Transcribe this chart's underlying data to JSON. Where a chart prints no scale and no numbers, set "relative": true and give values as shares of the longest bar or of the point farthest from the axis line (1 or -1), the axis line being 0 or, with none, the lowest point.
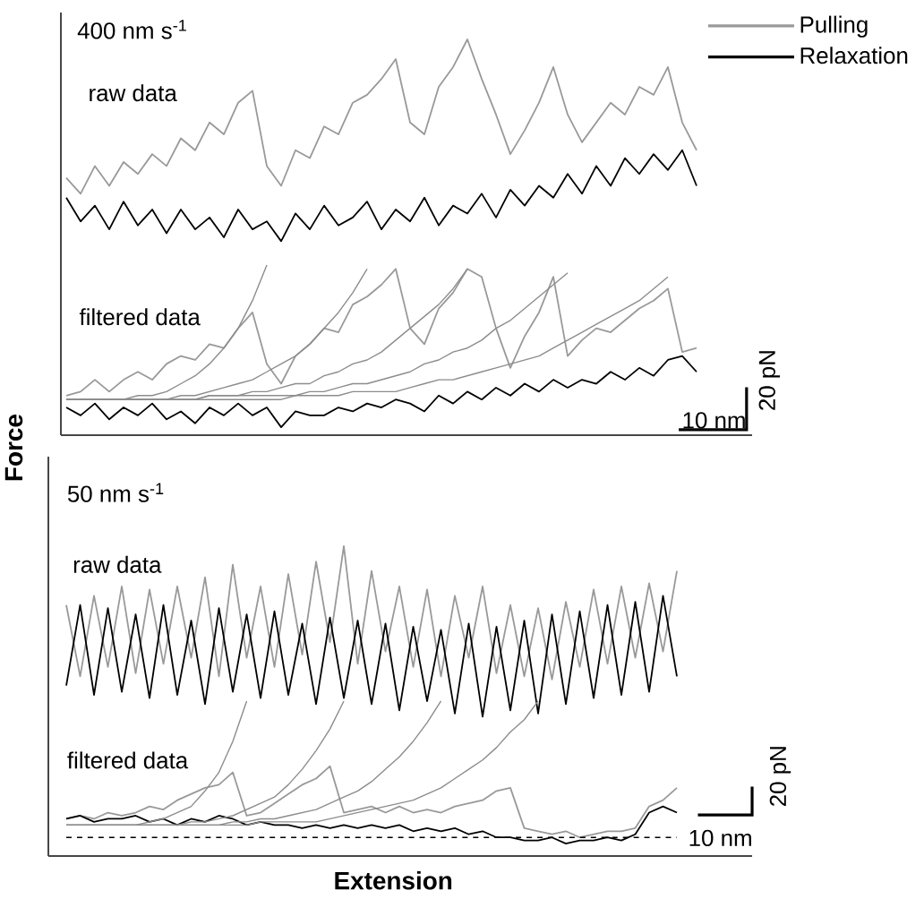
{
  "chart_data": [
    {
      "type": "line",
      "relative": true,
      "legend": "top right",
      "ylabel": "Force",
      "annotations": [
        "400 nm s$^{-1}$",
        "raw data",
        "filtered data",
        "20 pN",
        "10 nm"
      ],
      "categories": [
        null,
        null,
        null,
        null,
        null,
        null,
        null,
        null,
        null,
        null,
        null,
        null,
        null,
        null,
        null,
        null,
        null,
        null,
        null,
        null,
        null,
        null,
        null,
        null,
        null,
        null,
        null,
        null,
        null,
        null,
        null,
        null,
        null,
        null,
        null,
        null,
        null,
        null,
        null,
        null,
        null,
        null,
        null,
        null,
        null
      ],
      "series": [
        {
          "name": "Pulling",
          "color": "#999999",
          "values": [
            0.65,
            0.61,
            0.68,
            0.63,
            0.69,
            0.66,
            0.71,
            0.68,
            0.75,
            0.72,
            0.79,
            0.76,
            0.84,
            0.87,
            0.68,
            0.63,
            0.72,
            0.7,
            0.78,
            0.76,
            0.84,
            0.86,
            0.9,
            0.95,
            0.79,
            0.76,
            0.88,
            0.93,
            1,
            0.9,
            0.81,
            0.71,
            0.77,
            0.84,
            0.93,
            0.81,
            0.74,
            0.79,
            0.84,
            0.81,
            0.88,
            0.86,
            0.93,
            0.79,
            0.72
          ]
        },
        {
          "name": "Relaxation",
          "color": "#000000",
          "values": [
            0.6,
            0.54,
            0.58,
            0.52,
            0.59,
            0.53,
            0.57,
            0.51,
            0.57,
            0.52,
            0.55,
            0.5,
            0.57,
            0.52,
            0.54,
            0.49,
            0.56,
            0.52,
            0.58,
            0.53,
            0.55,
            0.59,
            0.52,
            0.57,
            0.54,
            0.6,
            0.53,
            0.58,
            0.56,
            0.61,
            0.55,
            0.62,
            0.58,
            0.63,
            0.6,
            0.66,
            0.61,
            0.68,
            0.63,
            0.7,
            0.66,
            0.71,
            0.67,
            0.72,
            0.63
          ]
        },
        {
          "color": "#999999",
          "values": [
            0.1,
            0.11,
            0.14,
            0.11,
            0.14,
            0.16,
            0.14,
            0.18,
            0.2,
            0.19,
            0.23,
            0.22,
            0.27,
            0.31,
            0.18,
            0.13,
            0.2,
            0.23,
            0.27,
            0.26,
            0.33,
            0.35,
            0.38,
            0.42,
            0.27,
            0.23,
            0.32,
            0.36,
            0.42,
            0.4,
            0.27,
            0.17,
            0.25,
            0.31,
            0.4,
            0.2,
            0.24,
            0.27,
            0.26,
            0.29,
            0.32,
            0.34,
            0.37,
            0.21,
            0.22
          ]
        },
        {
          "color": "#000000",
          "values": [
            0.07,
            0.05,
            0.08,
            0.04,
            0.07,
            0.05,
            0.08,
            0.04,
            0.06,
            0.03,
            0.07,
            0.05,
            0.08,
            0.05,
            0.07,
            0.02,
            0.06,
            0.05,
            0.05,
            0.07,
            0.06,
            0.08,
            0.07,
            0.09,
            0.08,
            0.06,
            0.1,
            0.08,
            0.11,
            0.09,
            0.12,
            0.1,
            0.13,
            0.11,
            0.14,
            0.12,
            0.14,
            0.13,
            0.16,
            0.14,
            0.17,
            0.15,
            0.19,
            0.2,
            0.16
          ]
        },
        {
          "color": "#8c8c8c",
          "values": [
            0.09,
            0.09,
            0.09,
            0.09,
            0.09,
            0.1,
            0.1,
            0.11,
            0.13,
            0.15,
            0.18,
            0.22,
            0.27,
            0.34,
            0.43,
            null,
            null,
            null,
            null,
            null,
            null,
            null,
            null,
            null,
            null,
            null,
            null,
            null,
            null,
            null,
            null,
            null,
            null,
            null,
            null,
            null,
            null,
            null,
            null,
            null,
            null,
            null,
            null,
            null,
            null
          ]
        },
        {
          "color": "#8c8c8c",
          "values": [
            0.09,
            0.09,
            0.09,
            0.09,
            0.09,
            0.09,
            0.09,
            0.09,
            0.1,
            0.1,
            0.11,
            0.12,
            0.13,
            0.14,
            0.16,
            0.18,
            0.2,
            0.23,
            0.27,
            0.31,
            0.36,
            0.42,
            null,
            null,
            null,
            null,
            null,
            null,
            null,
            null,
            null,
            null,
            null,
            null,
            null,
            null,
            null,
            null,
            null,
            null,
            null,
            null,
            null,
            null,
            null
          ]
        },
        {
          "color": "#8c8c8c",
          "values": [
            0.09,
            0.09,
            0.09,
            0.09,
            0.09,
            0.09,
            0.09,
            0.09,
            0.09,
            0.09,
            0.1,
            0.1,
            0.1,
            0.11,
            0.11,
            0.12,
            0.13,
            0.13,
            0.15,
            0.16,
            0.18,
            0.19,
            0.21,
            0.24,
            0.27,
            0.3,
            0.33,
            0.37,
            0.42,
            null,
            null,
            null,
            null,
            null,
            null,
            null,
            null,
            null,
            null,
            null,
            null,
            null,
            null,
            null,
            null
          ]
        },
        {
          "color": "#8c8c8c",
          "values": [
            0.09,
            0.09,
            0.09,
            0.09,
            0.09,
            0.09,
            0.09,
            0.09,
            0.09,
            0.09,
            0.1,
            0.1,
            0.1,
            0.1,
            0.1,
            0.1,
            0.1,
            0.11,
            0.11,
            0.12,
            0.13,
            0.13,
            0.14,
            0.15,
            0.16,
            0.18,
            0.19,
            0.21,
            0.22,
            0.24,
            0.27,
            0.29,
            0.32,
            0.35,
            0.38,
            0.41,
            null,
            null,
            null,
            null,
            null,
            null,
            null,
            null,
            null
          ]
        },
        {
          "color": "#8c8c8c",
          "values": [
            0.09,
            0.09,
            0.09,
            0.09,
            0.09,
            0.09,
            0.09,
            0.09,
            0.09,
            0.09,
            0.09,
            0.09,
            0.09,
            0.09,
            0.09,
            0.09,
            0.1,
            0.1,
            0.1,
            0.1,
            0.11,
            0.11,
            0.11,
            0.11,
            0.12,
            0.13,
            0.14,
            0.14,
            0.15,
            0.16,
            0.17,
            0.18,
            0.19,
            0.2,
            0.22,
            0.24,
            0.26,
            0.28,
            0.3,
            0.32,
            0.34,
            0.37,
            0.4,
            null,
            null
          ]
        }
      ]
    },
    {
      "type": "line",
      "relative": true,
      "xlabel": "Extension",
      "annotations": [
        "50 nm s$^{-1}$",
        "raw data",
        "filtered data",
        "20 pN",
        "10 nm"
      ],
      "categories": [
        null,
        null,
        null,
        null,
        null,
        null,
        null,
        null,
        null,
        null,
        null,
        null,
        null,
        null,
        null,
        null,
        null,
        null,
        null,
        null,
        null,
        null,
        null,
        null,
        null,
        null,
        null,
        null,
        null,
        null,
        null,
        null,
        null,
        null,
        null,
        null,
        null,
        null,
        null,
        null,
        null,
        null,
        null,
        null,
        null
      ],
      "ref_lines": [
        {
          "axis": "y",
          "value": 0.06,
          "color": "#000000",
          "line_style": "dashed"
        }
      ],
      "series": [
        {
          "color": "#999999",
          "values": [
            0.81,
            0.58,
            0.84,
            0.61,
            0.87,
            0.59,
            0.86,
            0.62,
            0.87,
            0.64,
            0.9,
            0.58,
            0.94,
            0.64,
            0.87,
            0.61,
            0.91,
            0.65,
            0.95,
            0.69,
            1,
            0.62,
            0.92,
            0.66,
            0.87,
            0.61,
            0.86,
            0.58,
            0.84,
            0.64,
            0.87,
            0.59,
            0.81,
            0.58,
            0.8,
            0.57,
            0.82,
            0.61,
            0.86,
            0.62,
            0.87,
            0.64,
            0.88,
            0.66,
            0.92
          ]
        },
        {
          "color": "#000000",
          "values": [
            0.55,
            0.81,
            0.52,
            0.8,
            0.53,
            0.78,
            0.51,
            0.81,
            0.52,
            0.76,
            0.49,
            0.8,
            0.53,
            0.78,
            0.51,
            0.79,
            0.52,
            0.75,
            0.49,
            0.77,
            0.51,
            0.76,
            0.49,
            0.75,
            0.47,
            0.74,
            0.5,
            0.73,
            0.46,
            0.75,
            0.45,
            0.74,
            0.47,
            0.76,
            0.46,
            0.78,
            0.49,
            0.79,
            0.51,
            0.81,
            0.52,
            0.82,
            0.53,
            0.84,
            0.58
          ]
        },
        {
          "color": "#999999",
          "values": [
            0.12,
            0.13,
            0.12,
            0.14,
            0.13,
            0.14,
            0.16,
            0.15,
            0.18,
            0.2,
            0.22,
            0.23,
            0.27,
            0.13,
            0.14,
            0.17,
            0.2,
            0.23,
            0.25,
            0.29,
            0.14,
            0.15,
            0.16,
            0.14,
            0.16,
            0.14,
            0.15,
            0.14,
            0.16,
            0.17,
            0.18,
            0.21,
            0.22,
            0.09,
            0.08,
            0.07,
            0.08,
            0.06,
            0.07,
            0.08,
            0.08,
            0.09,
            0.16,
            0.18,
            0.22
          ]
        },
        {
          "color": "#000000",
          "values": [
            0.12,
            0.13,
            0.11,
            0.12,
            0.12,
            0.13,
            0.11,
            0.12,
            0.1,
            0.12,
            0.11,
            0.13,
            0.12,
            0.1,
            0.11,
            0.1,
            0.1,
            0.09,
            0.1,
            0.09,
            0.1,
            0.09,
            0.1,
            0.09,
            0.1,
            0.08,
            0.09,
            0.08,
            0.09,
            0.07,
            0.08,
            0.06,
            0.06,
            0.05,
            0.05,
            0.06,
            0.04,
            0.05,
            0.05,
            0.06,
            0.05,
            0.07,
            0.14,
            0.16,
            0.14
          ]
        },
        {
          "color": "#8c8c8c",
          "values": [
            0.1,
            0.1,
            0.1,
            0.1,
            0.1,
            0.1,
            0.11,
            0.12,
            0.14,
            0.16,
            0.21,
            0.27,
            0.37,
            0.5,
            null,
            null,
            null,
            null,
            null,
            null,
            null,
            null,
            null,
            null,
            null,
            null,
            null,
            null,
            null,
            null,
            null,
            null,
            null,
            null,
            null,
            null,
            null,
            null,
            null,
            null,
            null,
            null,
            null,
            null,
            null
          ]
        },
        {
          "color": "#8c8c8c",
          "values": [
            0.1,
            0.1,
            0.1,
            0.1,
            0.1,
            0.1,
            0.1,
            0.1,
            0.1,
            0.11,
            0.11,
            0.12,
            0.13,
            0.15,
            0.17,
            0.19,
            0.23,
            0.28,
            0.34,
            0.41,
            0.5,
            null,
            null,
            null,
            null,
            null,
            null,
            null,
            null,
            null,
            null,
            null,
            null,
            null,
            null,
            null,
            null,
            null,
            null,
            null,
            null,
            null,
            null,
            null,
            null
          ]
        },
        {
          "color": "#8c8c8c",
          "values": [
            0.1,
            0.1,
            0.1,
            0.1,
            0.1,
            0.1,
            0.1,
            0.1,
            0.1,
            0.1,
            0.1,
            0.1,
            0.11,
            0.11,
            0.12,
            0.12,
            0.13,
            0.14,
            0.15,
            0.17,
            0.19,
            0.21,
            0.24,
            0.28,
            0.32,
            0.37,
            0.43,
            0.5,
            null,
            null,
            null,
            null,
            null,
            null,
            null,
            null,
            null,
            null,
            null,
            null,
            null,
            null,
            null,
            null,
            null
          ]
        },
        {
          "color": "#8c8c8c",
          "values": [
            0.1,
            0.1,
            0.1,
            0.1,
            0.1,
            0.1,
            0.1,
            0.1,
            0.1,
            0.1,
            0.1,
            0.1,
            0.1,
            0.1,
            0.11,
            0.11,
            0.11,
            0.11,
            0.11,
            0.12,
            0.13,
            0.14,
            0.15,
            0.16,
            0.17,
            0.18,
            0.2,
            0.22,
            0.25,
            0.28,
            0.31,
            0.35,
            0.4,
            0.44,
            0.5,
            null,
            null,
            null,
            null,
            null,
            null,
            null,
            null,
            null,
            null
          ]
        }
      ]
    }
  ]
}
